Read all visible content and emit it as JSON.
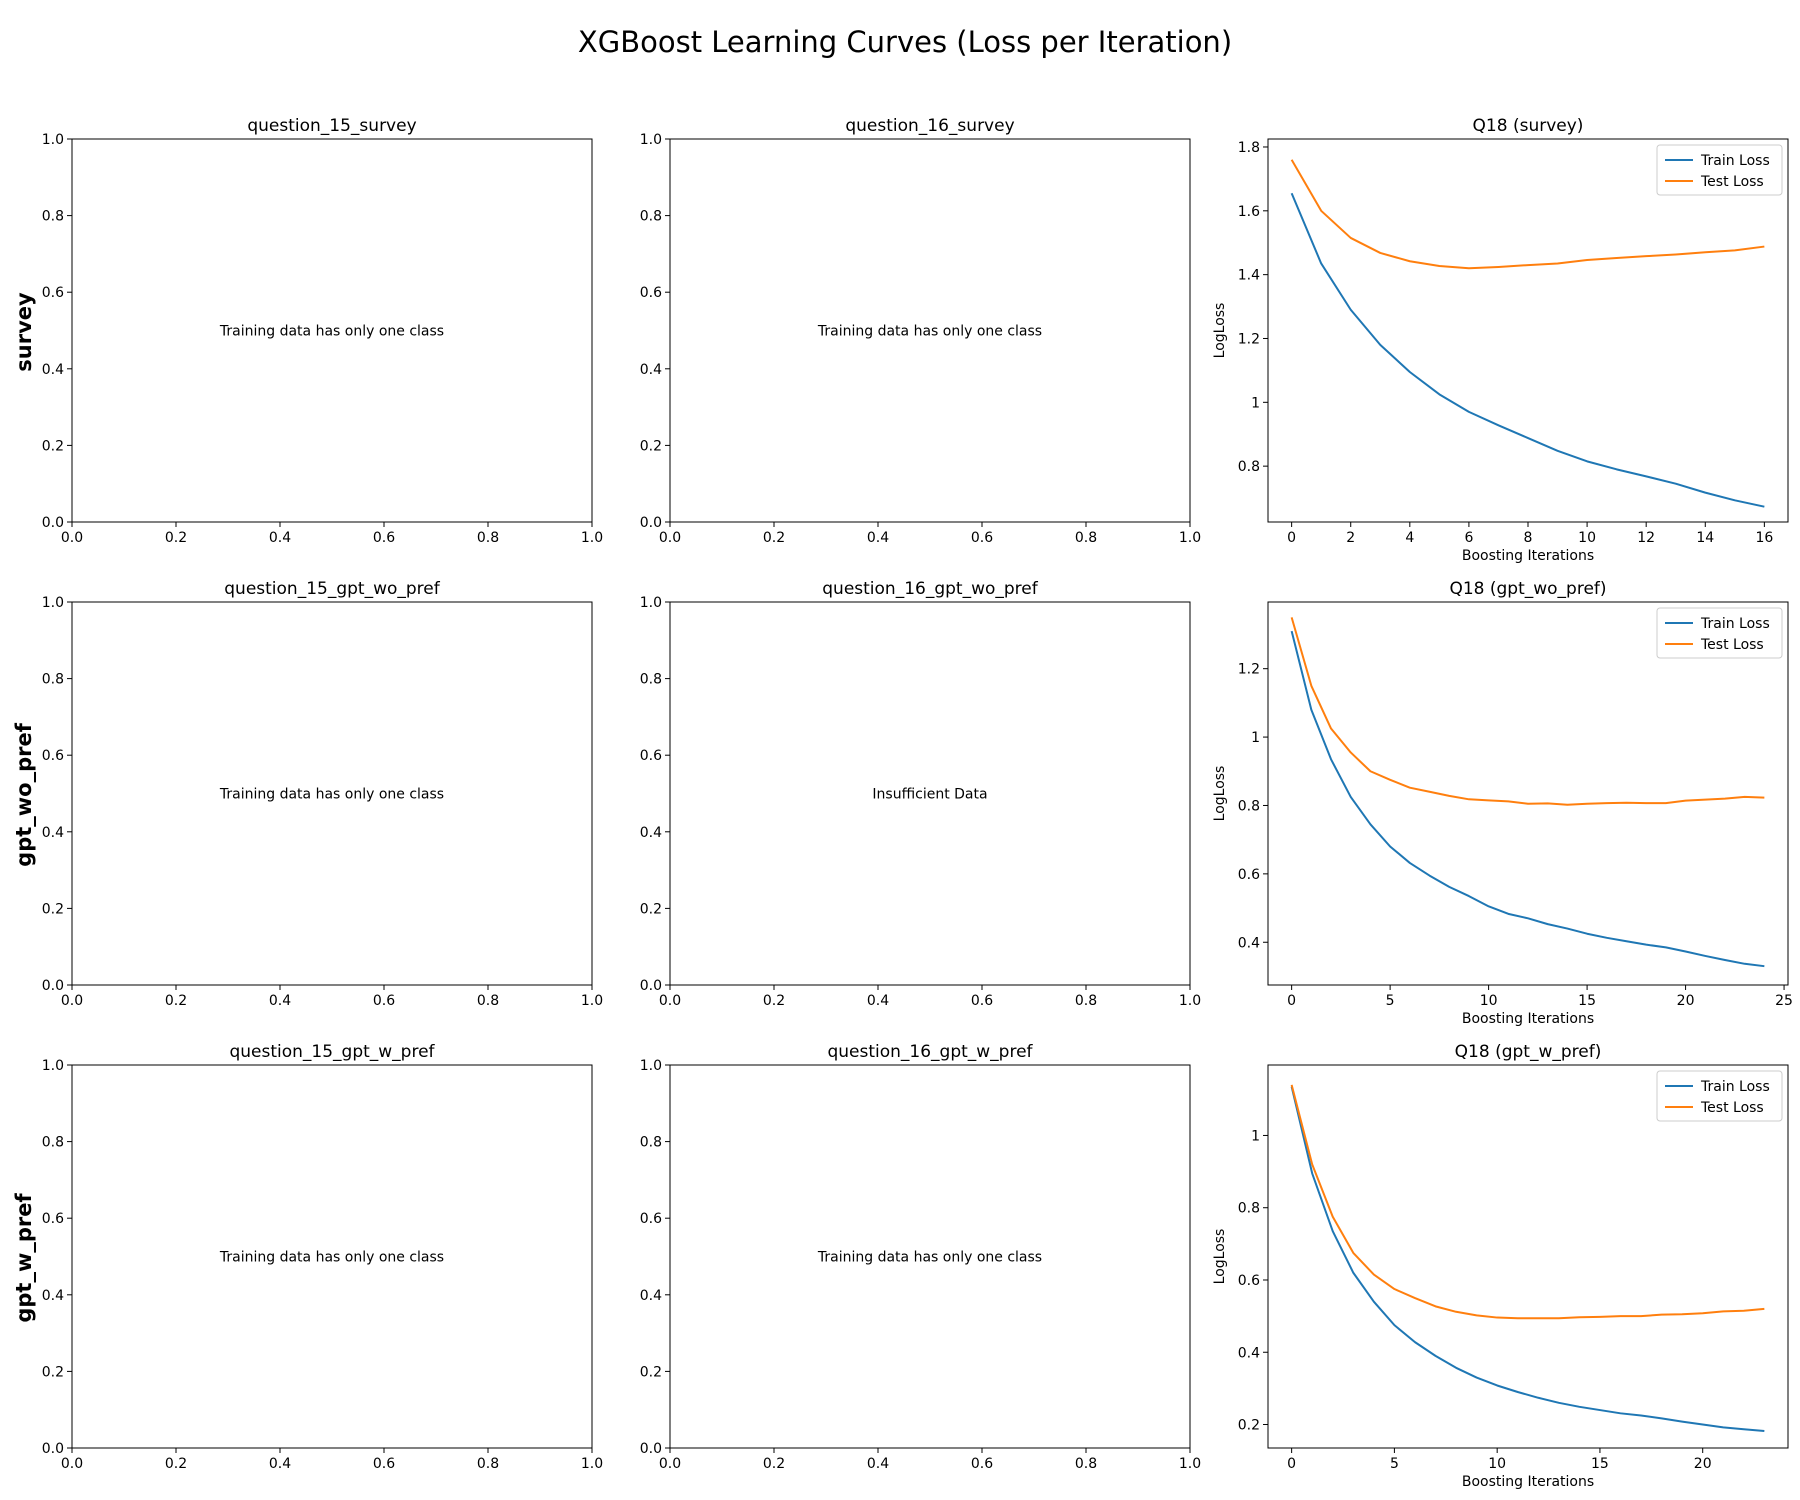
{
  "figure_title": "XGBoost Learning Curves (Loss per Iteration)",
  "row_labels": [
    "survey",
    "gpt_wo_pref",
    "gpt_w_pref"
  ],
  "colors": {
    "train": "#1f77b4",
    "test": "#ff7f0e"
  },
  "chart_data": [
    {
      "type": "line",
      "title": "question_15_survey",
      "message": "Training data has only one class",
      "xlim": [
        0,
        1
      ],
      "ylim": [
        0,
        1
      ],
      "xticks": [
        "0.0",
        "0.2",
        "0.4",
        "0.6",
        "0.8",
        "1.0"
      ],
      "yticks": [
        "0.0",
        "0.2",
        "0.4",
        "0.6",
        "0.8",
        "1.0"
      ],
      "xlabel": "",
      "ylabel": "",
      "series": []
    },
    {
      "type": "line",
      "title": "question_16_survey",
      "message": "Training data has only one class",
      "xlim": [
        0,
        1
      ],
      "ylim": [
        0,
        1
      ],
      "xticks": [
        "0.0",
        "0.2",
        "0.4",
        "0.6",
        "0.8",
        "1.0"
      ],
      "yticks": [
        "0.0",
        "0.2",
        "0.4",
        "0.6",
        "0.8",
        "1.0"
      ],
      "xlabel": "",
      "ylabel": "",
      "series": []
    },
    {
      "type": "line",
      "title": "Q18 (survey)",
      "xlabel": "Boosting Iterations",
      "ylabel": "LogLoss",
      "xlim": [
        -0.8,
        16.8
      ],
      "ylim": [
        0.625,
        1.825
      ],
      "x_ticks": [
        0,
        2,
        4,
        6,
        8,
        10,
        12,
        14,
        16
      ],
      "y_ticks": [
        0.8,
        1.0,
        1.2,
        1.4,
        1.6,
        1.8
      ],
      "legend": "top-right",
      "series": [
        {
          "name": "Train Loss",
          "key": "train",
          "values": [
            1.655,
            1.435,
            1.29,
            1.18,
            1.095,
            1.025,
            0.97,
            0.928,
            0.888,
            0.848,
            0.815,
            0.79,
            0.768,
            0.745,
            0.717,
            0.693,
            0.673
          ]
        },
        {
          "name": "Test Loss",
          "key": "test",
          "values": [
            1.76,
            1.6,
            1.515,
            1.468,
            1.442,
            1.427,
            1.42,
            1.424,
            1.43,
            1.435,
            1.446,
            1.452,
            1.458,
            1.463,
            1.47,
            1.476,
            1.488
          ]
        }
      ]
    },
    {
      "type": "line",
      "title": "question_15_gpt_wo_pref",
      "message": "Training data has only one class",
      "xlim": [
        0,
        1
      ],
      "ylim": [
        0,
        1
      ],
      "xticks": [
        "0.0",
        "0.2",
        "0.4",
        "0.6",
        "0.8",
        "1.0"
      ],
      "yticks": [
        "0.0",
        "0.2",
        "0.4",
        "0.6",
        "0.8",
        "1.0"
      ],
      "xlabel": "",
      "ylabel": "",
      "series": []
    },
    {
      "type": "line",
      "title": "question_16_gpt_wo_pref",
      "message": "Insufficient Data",
      "xlim": [
        0,
        1
      ],
      "ylim": [
        0,
        1
      ],
      "xticks": [
        "0.0",
        "0.2",
        "0.4",
        "0.6",
        "0.8",
        "1.0"
      ],
      "yticks": [
        "0.0",
        "0.2",
        "0.4",
        "0.6",
        "0.8",
        "1.0"
      ],
      "xlabel": "",
      "ylabel": "",
      "series": []
    },
    {
      "type": "line",
      "title": "Q18 (gpt_wo_pref)",
      "xlabel": "Boosting Iterations",
      "ylabel": "LogLoss",
      "xlim": [
        -1.2,
        25.2
      ],
      "ylim": [
        0.275,
        1.395
      ],
      "x_ticks": [
        0,
        5,
        10,
        15,
        20,
        25
      ],
      "y_ticks": [
        0.4,
        0.6,
        0.8,
        1.0,
        1.2
      ],
      "legend": "top-right",
      "series": [
        {
          "name": "Train Loss",
          "key": "train",
          "values": [
            1.31,
            1.08,
            0.935,
            0.825,
            0.745,
            0.68,
            0.632,
            0.595,
            0.562,
            0.535,
            0.505,
            0.483,
            0.47,
            0.453,
            0.44,
            0.425,
            0.413,
            0.403,
            0.393,
            0.385,
            0.373,
            0.36,
            0.348,
            0.337,
            0.33
          ]
        },
        {
          "name": "Test Loss",
          "key": "test",
          "values": [
            1.35,
            1.15,
            1.025,
            0.955,
            0.9,
            0.875,
            0.852,
            0.84,
            0.828,
            0.818,
            0.815,
            0.812,
            0.805,
            0.806,
            0.802,
            0.805,
            0.807,
            0.808,
            0.807,
            0.807,
            0.814,
            0.817,
            0.82,
            0.825,
            0.823
          ]
        }
      ]
    },
    {
      "type": "line",
      "title": "question_15_gpt_w_pref",
      "message": "Training data has only one class",
      "xlim": [
        0,
        1
      ],
      "ylim": [
        0,
        1
      ],
      "xticks": [
        "0.0",
        "0.2",
        "0.4",
        "0.6",
        "0.8",
        "1.0"
      ],
      "yticks": [
        "0.0",
        "0.2",
        "0.4",
        "0.6",
        "0.8",
        "1.0"
      ],
      "xlabel": "",
      "ylabel": "",
      "series": []
    },
    {
      "type": "line",
      "title": "question_16_gpt_w_pref",
      "message": "Training data has only one class",
      "xlim": [
        0,
        1
      ],
      "ylim": [
        0,
        1
      ],
      "xticks": [
        "0.0",
        "0.2",
        "0.4",
        "0.6",
        "0.8",
        "1.0"
      ],
      "yticks": [
        "0.0",
        "0.2",
        "0.4",
        "0.6",
        "0.8",
        "1.0"
      ],
      "xlabel": "",
      "ylabel": "",
      "series": []
    },
    {
      "type": "line",
      "title": "Q18 (gpt_w_pref)",
      "xlabel": "Boosting Iterations",
      "ylabel": "LogLoss",
      "xlim": [
        -1.15,
        24.15
      ],
      "ylim": [
        0.135,
        1.195
      ],
      "x_ticks": [
        0,
        5,
        10,
        15,
        20
      ],
      "y_ticks": [
        0.2,
        0.4,
        0.6,
        0.8,
        1.0
      ],
      "legend": "top-right",
      "series": [
        {
          "name": "Train Loss",
          "key": "train",
          "values": [
            1.135,
            0.895,
            0.735,
            0.62,
            0.54,
            0.475,
            0.428,
            0.39,
            0.357,
            0.33,
            0.308,
            0.29,
            0.274,
            0.26,
            0.249,
            0.24,
            0.231,
            0.225,
            0.217,
            0.208,
            0.2,
            0.192,
            0.187,
            0.182
          ]
        },
        {
          "name": "Test Loss",
          "key": "test",
          "values": [
            1.14,
            0.92,
            0.775,
            0.675,
            0.615,
            0.575,
            0.55,
            0.527,
            0.512,
            0.502,
            0.496,
            0.494,
            0.494,
            0.494,
            0.497,
            0.498,
            0.5,
            0.5,
            0.504,
            0.505,
            0.508,
            0.513,
            0.515,
            0.52
          ]
        }
      ]
    }
  ]
}
